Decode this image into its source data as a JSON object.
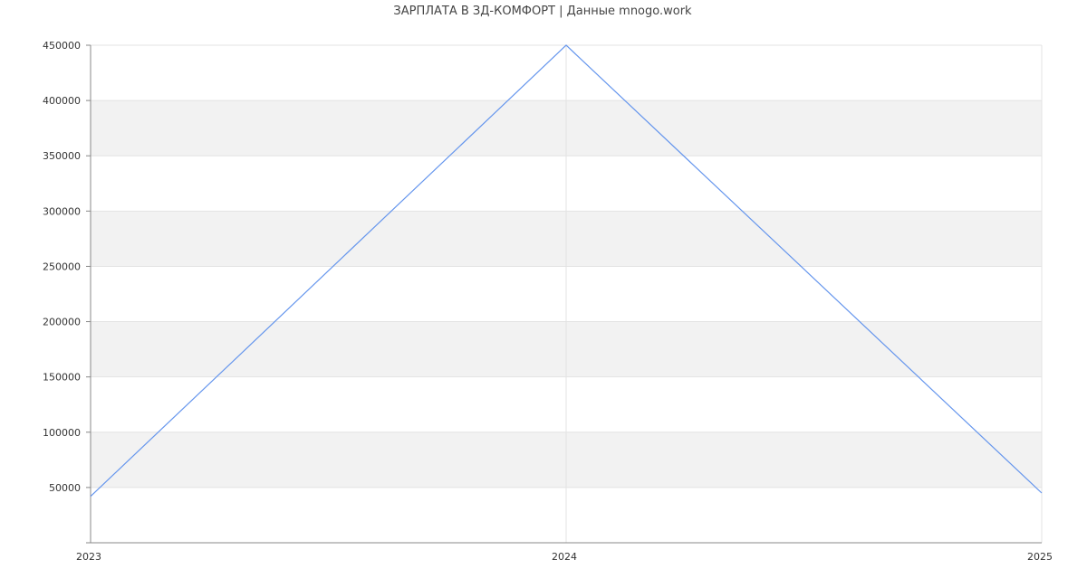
{
  "chart_data": {
    "type": "line",
    "title": "ЗАРПЛАТА В  ЗД-КОМФОРТ | Данные mnogo.work",
    "x": [
      "2023",
      "2024",
      "2025"
    ],
    "series": [
      {
        "values": [
          42000,
          450000,
          45000
        ],
        "color": "#6495ed"
      }
    ],
    "ylim": [
      0,
      450000
    ],
    "yticks": [
      50000,
      100000,
      150000,
      200000,
      250000,
      300000,
      350000,
      400000,
      450000
    ],
    "xticks": [
      "2023",
      "2024",
      "2025"
    ],
    "grid": true,
    "band_color": "#f2f2f2",
    "xlabel": "",
    "ylabel": ""
  }
}
